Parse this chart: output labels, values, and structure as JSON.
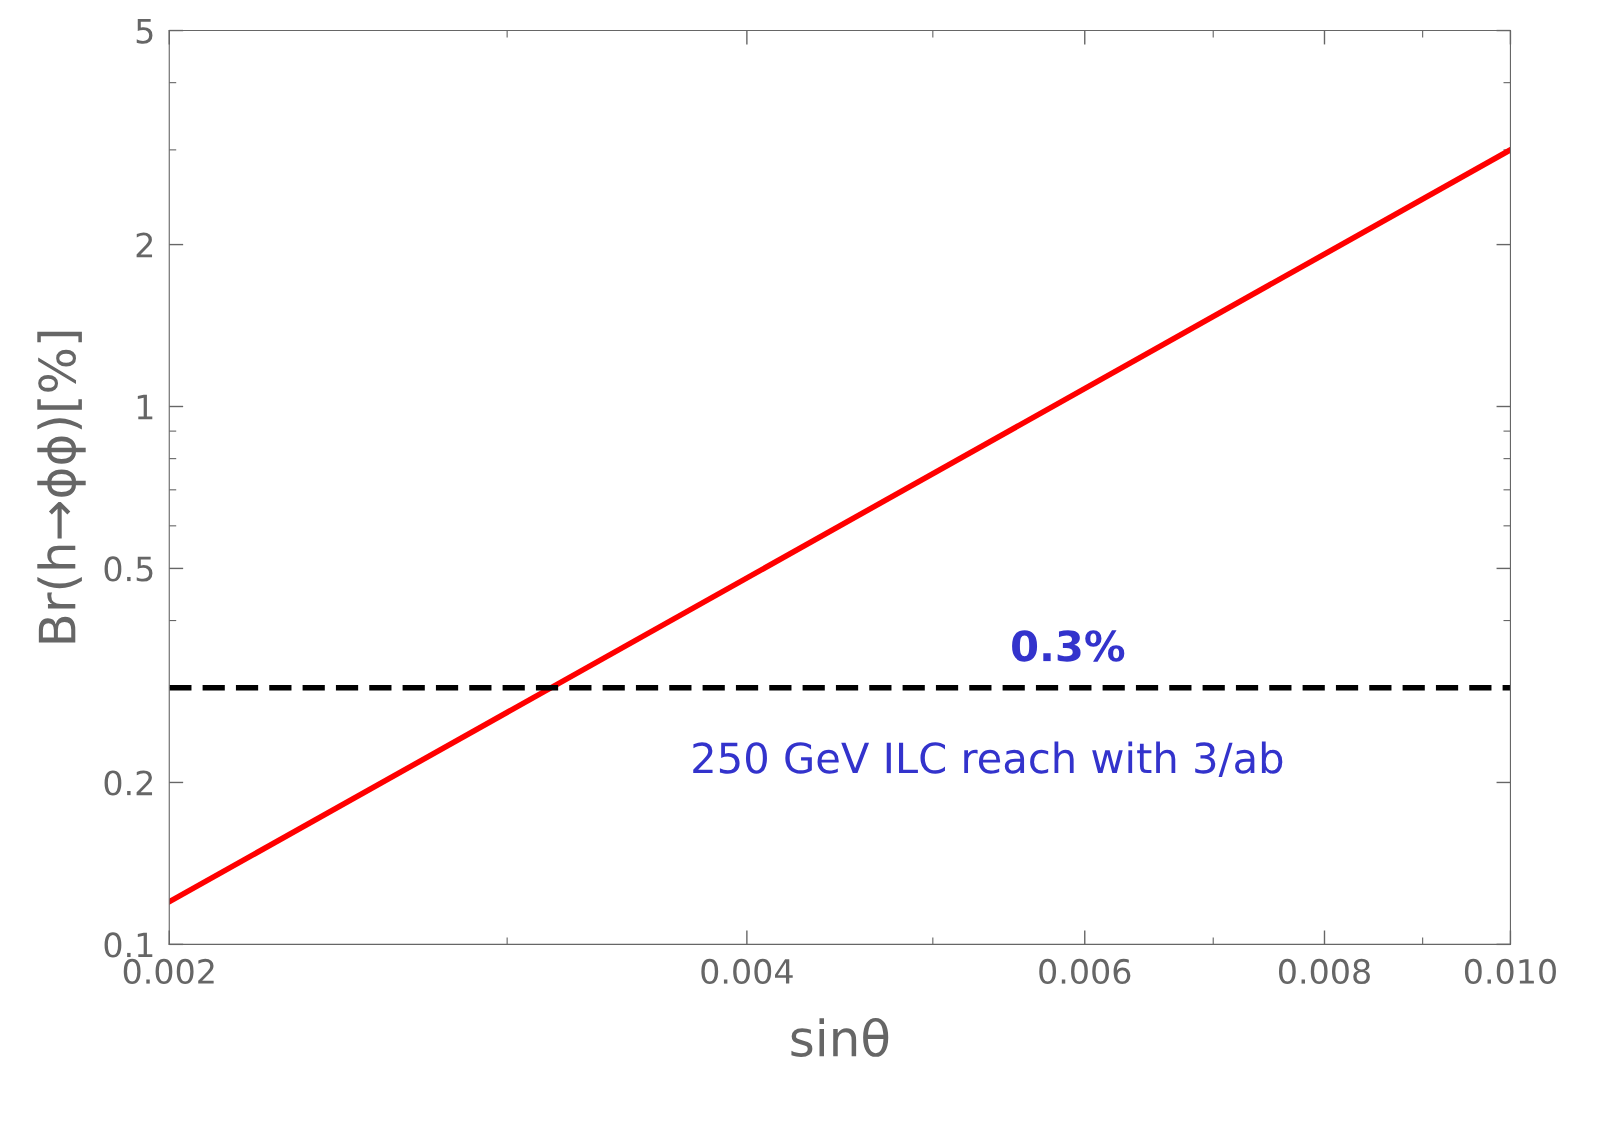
{
  "chart_data": {
    "type": "line",
    "xlabel": "sinθ",
    "ylabel": "Br(h→ϕϕ)[%]",
    "log": "xy",
    "grid": false,
    "legend": false,
    "marker": "none",
    "line_style": "solid",
    "x": [
      0.002,
      0.01
    ],
    "series": [
      {
        "color": "#ff0000",
        "values": [
          0.12,
          3.0
        ]
      }
    ],
    "xlim": [
      0.002,
      0.01
    ],
    "xticks": [
      0.002,
      0.004,
      0.006,
      0.008,
      {
        "value": 0.01,
        "label": "0.010"
      }
    ],
    "ylim": [
      0.1,
      5
    ],
    "yticks": [
      0.1,
      0.2,
      0.5,
      1,
      2,
      5
    ],
    "ref_lines": [
      {
        "axis": "y",
        "value": 0.3,
        "label": "0.3%",
        "color": "#000000",
        "line_style": "dashed"
      }
    ],
    "annotations": [
      "250 GeV ILC reach with 3/ab"
    ]
  }
}
